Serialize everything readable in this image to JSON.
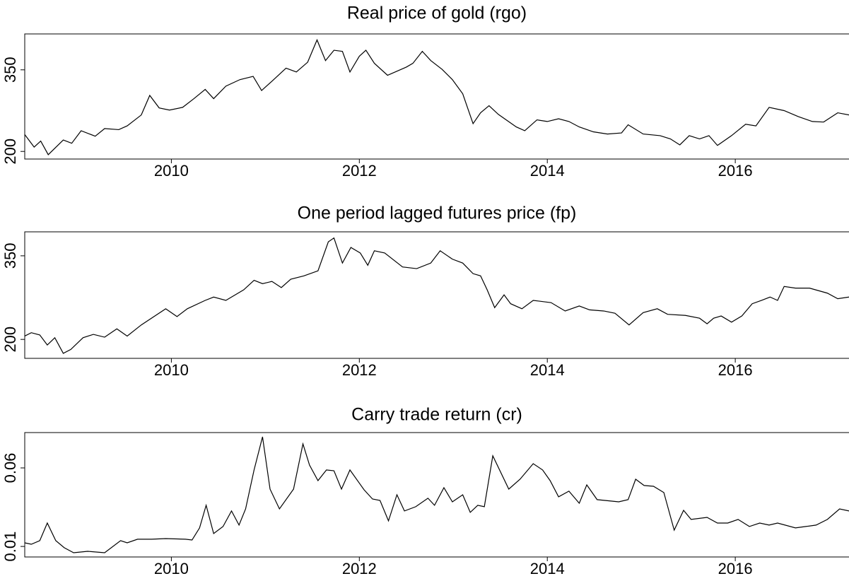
{
  "chart_data": [
    {
      "type": "line",
      "title": "Real price of gold (rgo)",
      "color": "#000000",
      "xlim": [
        2008.44,
        2017.21
      ],
      "xticks": [
        2010,
        2012,
        2014,
        2016
      ],
      "ylim": [
        186,
        416
      ],
      "yticks": [
        200,
        350
      ],
      "x": [
        2008.44,
        2008.54,
        2008.61,
        2008.69,
        2008.85,
        2008.94,
        2009.04,
        2009.19,
        2009.29,
        2009.44,
        2009.53,
        2009.68,
        2009.77,
        2009.87,
        2009.98,
        2010.12,
        2010.24,
        2010.36,
        2010.45,
        2010.58,
        2010.73,
        2010.87,
        2010.96,
        2011.07,
        2011.22,
        2011.33,
        2011.45,
        2011.55,
        2011.64,
        2011.73,
        2011.82,
        2011.9,
        2012.0,
        2012.07,
        2012.16,
        2012.3,
        2012.5,
        2012.57,
        2012.67,
        2012.76,
        2012.88,
        2012.99,
        2013.1,
        2013.21,
        2013.29,
        2013.38,
        2013.48,
        2013.67,
        2013.76,
        2013.89,
        2014.0,
        2014.12,
        2014.23,
        2014.34,
        2014.49,
        2014.64,
        2014.79,
        2014.86,
        2015.02,
        2015.2,
        2015.31,
        2015.41,
        2015.51,
        2015.62,
        2015.72,
        2015.81,
        2015.96,
        2016.11,
        2016.22,
        2016.36,
        2016.52,
        2016.67,
        2016.82,
        2016.94,
        2017.09,
        2017.21
      ],
      "values": [
        231,
        208,
        219,
        194,
        221,
        215,
        238,
        228,
        242,
        240,
        247,
        267,
        303,
        280,
        276,
        281,
        297,
        314,
        297,
        320,
        332,
        338,
        312,
        329,
        353,
        346,
        364,
        405,
        367,
        386,
        384,
        346,
        375,
        386,
        362,
        340,
        355,
        362,
        384,
        367,
        351,
        332,
        306,
        251,
        271,
        284,
        268,
        245,
        238,
        258,
        255,
        260,
        255,
        245,
        236,
        232,
        234,
        249,
        232,
        229,
        223,
        212,
        229,
        223,
        229,
        211,
        229,
        250,
        247,
        281,
        275,
        264,
        255,
        254,
        271,
        267
      ]
    },
    {
      "type": "line",
      "title": "One period lagged futures price (fp)",
      "color": "#000000",
      "xlim": [
        2008.44,
        2017.21
      ],
      "xticks": [
        2010,
        2012,
        2014,
        2016
      ],
      "ylim": [
        166,
        393
      ],
      "yticks": [
        200,
        350
      ],
      "x": [
        2008.44,
        2008.51,
        2008.6,
        2008.68,
        2008.76,
        2008.85,
        2008.93,
        2009.06,
        2009.17,
        2009.29,
        2009.42,
        2009.53,
        2009.68,
        2009.94,
        2010.06,
        2010.17,
        2010.36,
        2010.45,
        2010.58,
        2010.77,
        2010.88,
        2010.97,
        2011.07,
        2011.17,
        2011.27,
        2011.41,
        2011.56,
        2011.67,
        2011.73,
        2011.82,
        2011.91,
        2012.01,
        2012.09,
        2012.16,
        2012.27,
        2012.46,
        2012.61,
        2012.76,
        2012.86,
        2012.99,
        2013.1,
        2013.21,
        2013.29,
        2013.36,
        2013.44,
        2013.54,
        2013.61,
        2013.73,
        2013.85,
        2014.04,
        2014.19,
        2014.34,
        2014.45,
        2014.6,
        2014.72,
        2014.87,
        2015.02,
        2015.17,
        2015.28,
        2015.47,
        2015.62,
        2015.7,
        2015.77,
        2015.85,
        2015.96,
        2016.07,
        2016.18,
        2016.28,
        2016.37,
        2016.45,
        2016.52,
        2016.64,
        2016.79,
        2016.98,
        2017.09,
        2017.21
      ],
      "values": [
        206,
        212,
        208,
        190,
        203,
        175,
        182,
        203,
        209,
        204,
        219,
        206,
        226,
        255,
        241,
        255,
        270,
        276,
        270,
        289,
        306,
        300,
        304,
        293,
        308,
        314,
        323,
        375,
        382,
        337,
        365,
        355,
        333,
        359,
        355,
        330,
        327,
        337,
        359,
        344,
        337,
        318,
        314,
        289,
        257,
        280,
        264,
        255,
        270,
        266,
        251,
        260,
        253,
        251,
        247,
        226,
        248,
        255,
        245,
        243,
        238,
        228,
        238,
        242,
        231,
        242,
        264,
        270,
        276,
        270,
        295,
        292,
        292,
        283,
        273,
        276
      ]
    },
    {
      "type": "line",
      "title": "Carry trade return (cr)",
      "color": "#000000",
      "xlim": [
        2008.44,
        2017.21
      ],
      "xticks": [
        2010,
        2012,
        2014,
        2016
      ],
      "ylim": [
        0.0033,
        0.0825
      ],
      "yticks": [
        0.01,
        0.06
      ],
      "x": [
        2008.44,
        2008.51,
        2008.6,
        2008.68,
        2008.77,
        2008.86,
        2008.96,
        2009.11,
        2009.29,
        2009.46,
        2009.53,
        2009.64,
        2009.79,
        2009.94,
        2010.15,
        2010.22,
        2010.3,
        2010.37,
        2010.45,
        2010.55,
        2010.64,
        2010.72,
        2010.79,
        2010.88,
        2010.97,
        2011.05,
        2011.15,
        2011.3,
        2011.4,
        2011.47,
        2011.56,
        2011.65,
        2011.73,
        2011.81,
        2011.9,
        2012.05,
        2012.14,
        2012.22,
        2012.31,
        2012.4,
        2012.48,
        2012.6,
        2012.73,
        2012.8,
        2012.9,
        2012.99,
        2013.1,
        2013.18,
        2013.26,
        2013.33,
        2013.42,
        2013.59,
        2013.71,
        2013.85,
        2013.95,
        2014.03,
        2014.12,
        2014.23,
        2014.34,
        2014.42,
        2014.53,
        2014.76,
        2014.86,
        2014.94,
        2015.03,
        2015.13,
        2015.24,
        2015.35,
        2015.45,
        2015.53,
        2015.7,
        2015.81,
        2015.92,
        2016.03,
        2016.15,
        2016.26,
        2016.36,
        2016.45,
        2016.64,
        2016.75,
        2016.86,
        2016.98,
        2017.11,
        2017.21
      ],
      "values": [
        0.0123,
        0.0114,
        0.0137,
        0.0249,
        0.0137,
        0.0092,
        0.006,
        0.0069,
        0.006,
        0.0137,
        0.0123,
        0.0146,
        0.0146,
        0.015,
        0.0146,
        0.0141,
        0.0218,
        0.0362,
        0.0182,
        0.0227,
        0.0326,
        0.0236,
        0.0339,
        0.0587,
        0.0798,
        0.0465,
        0.0339,
        0.0465,
        0.0753,
        0.0618,
        0.0519,
        0.0587,
        0.0582,
        0.0465,
        0.0587,
        0.0461,
        0.0402,
        0.0393,
        0.0263,
        0.0429,
        0.0326,
        0.0353,
        0.0407,
        0.0362,
        0.0474,
        0.0384,
        0.0429,
        0.0317,
        0.0362,
        0.0353,
        0.0677,
        0.0465,
        0.0528,
        0.0627,
        0.0587,
        0.0519,
        0.0416,
        0.0452,
        0.0375,
        0.0492,
        0.0398,
        0.0384,
        0.0398,
        0.0528,
        0.0488,
        0.0483,
        0.0443,
        0.0204,
        0.033,
        0.0272,
        0.0285,
        0.0249,
        0.0249,
        0.0272,
        0.0227,
        0.0249,
        0.0236,
        0.0249,
        0.0218,
        0.0227,
        0.0236,
        0.0272,
        0.0339,
        0.0326
      ]
    }
  ]
}
